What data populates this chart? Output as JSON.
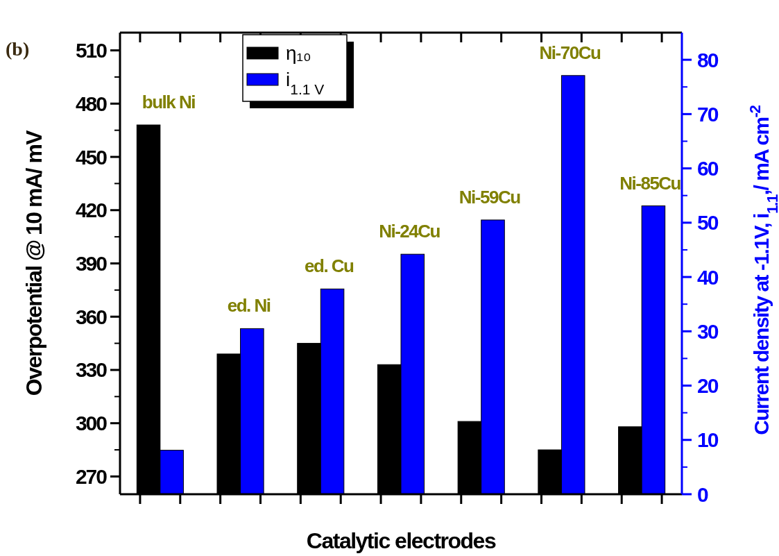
{
  "chart_data": {
    "type": "bar",
    "categories": [
      null,
      null,
      null,
      null,
      null,
      null,
      null
    ],
    "series": [
      {
        "name": "η₁₀",
        "color": "#000000",
        "values": [
          468,
          339,
          345,
          333,
          301,
          285,
          298
        ]
      },
      {
        "name": "i$_{1.1 V}$",
        "color": "#0000ff",
        "axis": "y2",
        "values": [
          8.1,
          30.5,
          37.8,
          44.2,
          50.5,
          77.1,
          53.1
        ]
      }
    ],
    "xlabel": "Catalytic electrodes",
    "ylabel": "Overpotential  @ 10 mA/ mV",
    "y2label": "Current density at -1.1V, i$_{1.1}$,/ mA cm$^{-2}$",
    "ylim": [
      260,
      520
    ],
    "yticks": [
      270,
      300,
      330,
      360,
      390,
      420,
      450,
      480,
      510
    ],
    "y2lim": [
      0,
      85
    ],
    "y2ticks": [
      0,
      10,
      20,
      30,
      40,
      50,
      60,
      70,
      80
    ],
    "annotations": [
      "(b)",
      "bulk Ni",
      "ed. Ni",
      "ed. Cu",
      "Ni-24Cu",
      "Ni-59Cu",
      "Ni-70Cu",
      "Ni-85Cu"
    ],
    "legend": "top",
    "grid": false
  }
}
